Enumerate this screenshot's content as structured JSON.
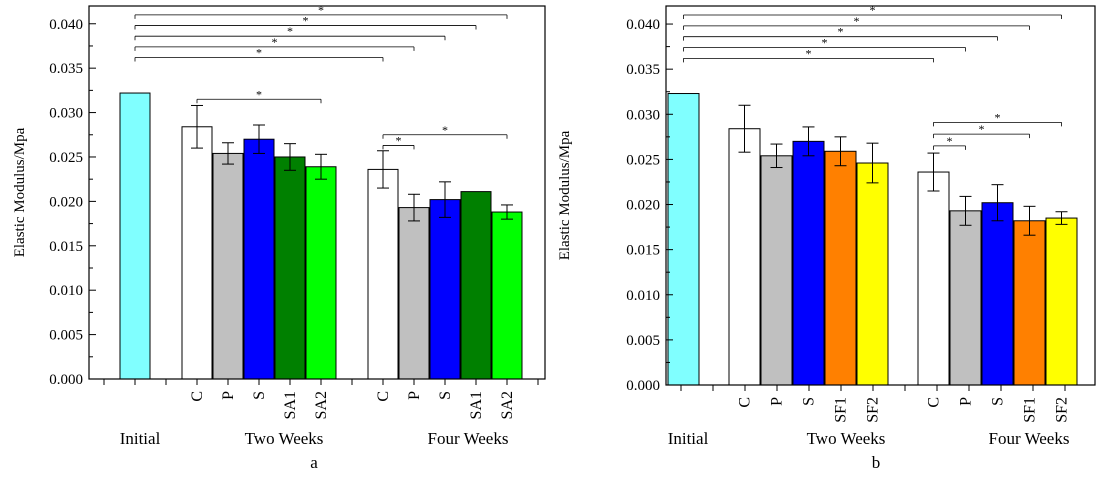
{
  "chart_data": [
    {
      "type": "bar",
      "panel_label": "a",
      "ylabel": "Elastic Modulus/Mpa",
      "ylim": [
        0,
        0.042
      ],
      "yticks": [
        "0.000",
        "0.005",
        "0.010",
        "0.015",
        "0.020",
        "0.025",
        "0.030",
        "0.035",
        "0.040"
      ],
      "groups": [
        "Initial",
        "Two Weeks",
        "Four Weeks"
      ],
      "bars": [
        {
          "group": "Initial",
          "label": "",
          "value": 0.0322,
          "error": 0,
          "color": "#80FFFF"
        },
        {
          "group": "Two Weeks",
          "label": "C",
          "value": 0.0284,
          "error": 0.0024,
          "color": "#FFFFFF"
        },
        {
          "group": "Two Weeks",
          "label": "P",
          "value": 0.0254,
          "error": 0.0012,
          "color": "#C0C0C0"
        },
        {
          "group": "Two Weeks",
          "label": "S",
          "value": 0.027,
          "error": 0.0016,
          "color": "#0000FF"
        },
        {
          "group": "Two Weeks",
          "label": "SA1",
          "value": 0.025,
          "error": 0.0015,
          "color": "#008000"
        },
        {
          "group": "Two Weeks",
          "label": "SA2",
          "value": 0.0239,
          "error": 0.0014,
          "color": "#00FF00"
        },
        {
          "group": "Four Weeks",
          "label": "C",
          "value": 0.0236,
          "error": 0.0021,
          "color": "#FFFFFF"
        },
        {
          "group": "Four Weeks",
          "label": "P",
          "value": 0.0193,
          "error": 0.0015,
          "color": "#C0C0C0"
        },
        {
          "group": "Four Weeks",
          "label": "S",
          "value": 0.0202,
          "error": 0.002,
          "color": "#0000FF"
        },
        {
          "group": "Four Weeks",
          "label": "SA1",
          "value": 0.0211,
          "error": 0.0,
          "color": "#008000"
        },
        {
          "group": "Four Weeks",
          "label": "SA2",
          "value": 0.0188,
          "error": 0.0008,
          "color": "#00FF00"
        }
      ],
      "significance": [
        {
          "from": 0,
          "to": 6,
          "level": 0.0362,
          "mark": "*"
        },
        {
          "from": 0,
          "to": 7,
          "level": 0.0374,
          "mark": "*"
        },
        {
          "from": 0,
          "to": 8,
          "level": 0.0386,
          "mark": "*"
        },
        {
          "from": 0,
          "to": 9,
          "level": 0.0398,
          "mark": "*"
        },
        {
          "from": 0,
          "to": 10,
          "level": 0.041,
          "mark": "*"
        },
        {
          "from": 1,
          "to": 5,
          "level": 0.0315,
          "mark": "*"
        },
        {
          "from": 6,
          "to": 7,
          "level": 0.0263,
          "mark": "*"
        },
        {
          "from": 6,
          "to": 10,
          "level": 0.0275,
          "mark": "*"
        }
      ]
    },
    {
      "type": "bar",
      "panel_label": "b",
      "ylabel": "Elastic Modulus/Mpa",
      "ylim": [
        0,
        0.042
      ],
      "yticks": [
        "0.000",
        "0.005",
        "0.010",
        "0.015",
        "0.020",
        "0.025",
        "0.030",
        "0.035",
        "0.040"
      ],
      "groups": [
        "Initial",
        "Two Weeks",
        "Four Weeks"
      ],
      "bars": [
        {
          "group": "Initial",
          "label": "",
          "value": 0.0323,
          "error": 0,
          "color": "#80FFFF"
        },
        {
          "group": "Two Weeks",
          "label": "C",
          "value": 0.0284,
          "error": 0.0026,
          "color": "#FFFFFF"
        },
        {
          "group": "Two Weeks",
          "label": "P",
          "value": 0.0254,
          "error": 0.0013,
          "color": "#C0C0C0"
        },
        {
          "group": "Two Weeks",
          "label": "S",
          "value": 0.027,
          "error": 0.0016,
          "color": "#0000FF"
        },
        {
          "group": "Two Weeks",
          "label": "SF1",
          "value": 0.0259,
          "error": 0.0016,
          "color": "#FF8000"
        },
        {
          "group": "Two Weeks",
          "label": "SF2",
          "value": 0.0246,
          "error": 0.0022,
          "color": "#FFFF00"
        },
        {
          "group": "Four Weeks",
          "label": "C",
          "value": 0.0236,
          "error": 0.0021,
          "color": "#FFFFFF"
        },
        {
          "group": "Four Weeks",
          "label": "P",
          "value": 0.0193,
          "error": 0.0016,
          "color": "#C0C0C0"
        },
        {
          "group": "Four Weeks",
          "label": "S",
          "value": 0.0202,
          "error": 0.002,
          "color": "#0000FF"
        },
        {
          "group": "Four Weeks",
          "label": "SF1",
          "value": 0.0182,
          "error": 0.0016,
          "color": "#FF8000"
        },
        {
          "group": "Four Weeks",
          "label": "SF2",
          "value": 0.0185,
          "error": 0.0007,
          "color": "#FFFF00"
        }
      ],
      "significance": [
        {
          "from": 0,
          "to": 6,
          "level": 0.0362,
          "mark": "*"
        },
        {
          "from": 0,
          "to": 7,
          "level": 0.0374,
          "mark": "*"
        },
        {
          "from": 0,
          "to": 8,
          "level": 0.0386,
          "mark": "*"
        },
        {
          "from": 0,
          "to": 9,
          "level": 0.0398,
          "mark": "*"
        },
        {
          "from": 0,
          "to": 10,
          "level": 0.041,
          "mark": "*"
        },
        {
          "from": 6,
          "to": 7,
          "level": 0.0265,
          "mark": "*"
        },
        {
          "from": 6,
          "to": 9,
          "level": 0.0278,
          "mark": "*"
        },
        {
          "from": 6,
          "to": 10,
          "level": 0.0291,
          "mark": "*"
        }
      ]
    }
  ]
}
